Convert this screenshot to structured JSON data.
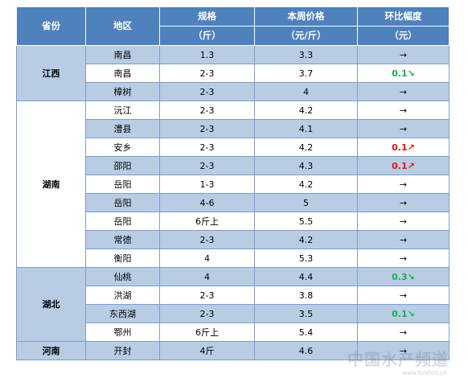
{
  "headers": {
    "province": "省份",
    "region": "地区",
    "spec": "规格",
    "spec_unit": "（斤）",
    "price": "本周价格",
    "price_unit": "（元/斤）",
    "change": "环比幅度",
    "change_unit": "（元）"
  },
  "provinces": {
    "jiangxi": "江西",
    "hunan": "湖南",
    "hubei": "湖北",
    "henan": "河南"
  },
  "rows": [
    {
      "region": "南昌",
      "spec": "1.3",
      "price": "3.3",
      "change_value": "",
      "change_arrow": "→",
      "trend": "flat"
    },
    {
      "region": "南昌",
      "spec": "2-3",
      "price": "3.7",
      "change_value": "0.1",
      "change_arrow": "↘",
      "trend": "down"
    },
    {
      "region": "樟树",
      "spec": "2-3",
      "price": "4",
      "change_value": "",
      "change_arrow": "→",
      "trend": "flat"
    },
    {
      "region": "沅江",
      "spec": "2-3",
      "price": "4.2",
      "change_value": "",
      "change_arrow": "→",
      "trend": "flat"
    },
    {
      "region": "澧县",
      "spec": "2-3",
      "price": "4.1",
      "change_value": "",
      "change_arrow": "→",
      "trend": "flat"
    },
    {
      "region": "安乡",
      "spec": "2-3",
      "price": "4.2",
      "change_value": "0.1",
      "change_arrow": "↗",
      "trend": "up"
    },
    {
      "region": "邵阳",
      "spec": "2-3",
      "price": "4.3",
      "change_value": "0.1",
      "change_arrow": "↗",
      "trend": "up"
    },
    {
      "region": "岳阳",
      "spec": "1-3",
      "price": "4.2",
      "change_value": "",
      "change_arrow": "→",
      "trend": "flat"
    },
    {
      "region": "岳阳",
      "spec": "4-6",
      "price": "5",
      "change_value": "",
      "change_arrow": "→",
      "trend": "flat"
    },
    {
      "region": "岳阳",
      "spec": "6斤上",
      "price": "5.5",
      "change_value": "",
      "change_arrow": "→",
      "trend": "flat"
    },
    {
      "region": "常德",
      "spec": "2-3",
      "price": "4.2",
      "change_value": "",
      "change_arrow": "→",
      "trend": "flat"
    },
    {
      "region": "衡阳",
      "spec": "4",
      "price": "5.3",
      "change_value": "",
      "change_arrow": "→",
      "trend": "flat"
    },
    {
      "region": "仙桃",
      "spec": "4",
      "price": "4.4",
      "change_value": "0.3",
      "change_arrow": "↘",
      "trend": "down"
    },
    {
      "region": "洪湖",
      "spec": "2-3",
      "price": "3.8",
      "change_value": "",
      "change_arrow": "→",
      "trend": "flat"
    },
    {
      "region": "东西湖",
      "spec": "2-3",
      "price": "3.5",
      "change_value": "0.1",
      "change_arrow": "↘",
      "trend": "down"
    },
    {
      "region": "鄂州",
      "spec": "6斤上",
      "price": "5.4",
      "change_value": "",
      "change_arrow": "→",
      "trend": "flat"
    },
    {
      "region": "开封",
      "spec": "4斤",
      "price": "4.6",
      "change_value": "",
      "change_arrow": "→",
      "trend": "flat"
    }
  ],
  "watermark": {
    "text": "中国水产频道",
    "sub": "www.fishfirst.cn"
  }
}
